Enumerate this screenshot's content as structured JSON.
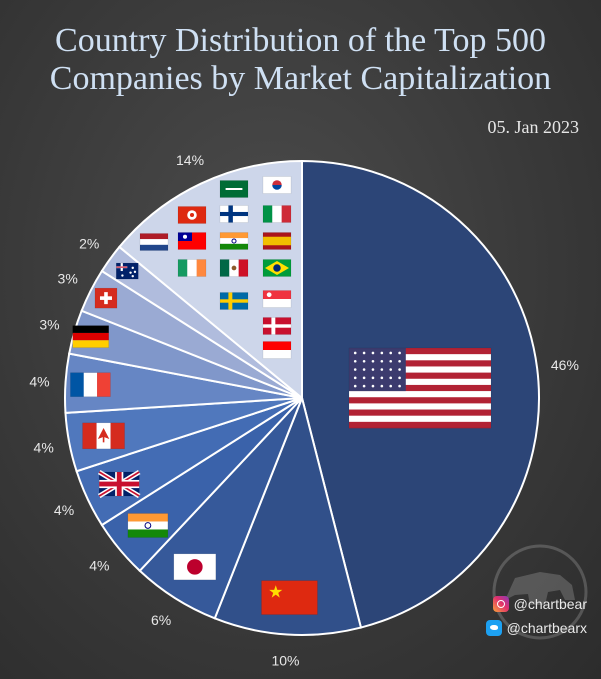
{
  "title_lines": [
    "Country Distribution of the Top 500",
    "Companies by Market Capitalization"
  ],
  "date": "05. Jan 2023",
  "social": {
    "instagram": "@chartbear",
    "twitter": "@chartbearx"
  },
  "chart_data": {
    "type": "pie",
    "title": "Country Distribution of the Top 500 Companies by Market Capitalization",
    "slices": [
      {
        "country": "United States",
        "value": 46,
        "label": "46%",
        "color": "#2c4577",
        "flag": "us"
      },
      {
        "country": "China",
        "value": 10,
        "label": "10%",
        "color": "#31508a",
        "flag": "cn"
      },
      {
        "country": "Japan",
        "value": 6,
        "label": "6%",
        "color": "#36599a",
        "flag": "jp"
      },
      {
        "country": "India",
        "value": 4,
        "label": "4%",
        "color": "#3a62aa",
        "flag": "in"
      },
      {
        "country": "United Kingdom",
        "value": 4,
        "label": "4%",
        "color": "#436cb4",
        "flag": "gb"
      },
      {
        "country": "Canada",
        "value": 4,
        "label": "4%",
        "color": "#5078bd",
        "flag": "ca"
      },
      {
        "country": "France",
        "value": 4,
        "label": "4%",
        "color": "#6686c4",
        "flag": "fr"
      },
      {
        "country": "Germany",
        "value": 3,
        "label": "3%",
        "color": "#8097ca",
        "flag": "de"
      },
      {
        "country": "Switzerland",
        "value": 3,
        "label": "3%",
        "color": "#9aaad3",
        "flag": "ch"
      },
      {
        "country": "Australia",
        "value": 2,
        "label": "2%",
        "color": "#b0bcdd",
        "flag": "au"
      },
      {
        "country": "Other",
        "value": 14,
        "label": "14%",
        "color": "#cdd6ea",
        "flag": "other"
      }
    ],
    "other_flags": [
      "sa",
      "kr",
      "hk",
      "fi",
      "it",
      "nl",
      "tw",
      "in",
      "es",
      "ie",
      "mx",
      "br",
      "se",
      "sg",
      "dk",
      "id"
    ]
  }
}
